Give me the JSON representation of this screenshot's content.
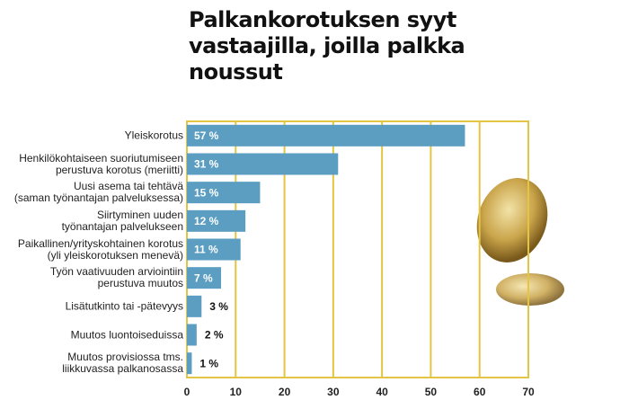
{
  "chart_data": {
    "type": "barh",
    "title": "Palkankorotuksen syyt\nvastaajilla, joilla palkka\nnoussut",
    "categories": [
      "Yleiskorotus",
      "Henkilökohtaiseen suoriutumiseen\nperustuva korotus (meriitti)",
      "Uusi asema tai tehtävä\n(saman työnantajan palveluksessa)",
      "Siirtyminen uuden\ntyönantajan palvelukseen",
      "Paikallinen/yrityskohtainen korotus\n(yli yleiskorotuksen menevä)",
      "Työn vaativuuden arviointiin\nperustuva muutos",
      "Lisätutkinto tai -pätevyys",
      "Muutos luontoiseduissa",
      "Muutos provisiossa tms.\nliikkuvassa palkanosassa"
    ],
    "values": [
      57,
      31,
      15,
      12,
      11,
      7,
      3,
      2,
      1
    ],
    "value_labels": [
      "57 %",
      "31 %",
      "15 %",
      "12 %",
      "11 %",
      "7 %",
      "3 %",
      "2 %",
      "1 %"
    ],
    "color": "#5b9ec2",
    "grid_color": "#e3c443",
    "xlim": [
      0,
      70
    ],
    "xticks": [
      0,
      10,
      20,
      30,
      40,
      50,
      60,
      70
    ],
    "grid": true
  }
}
